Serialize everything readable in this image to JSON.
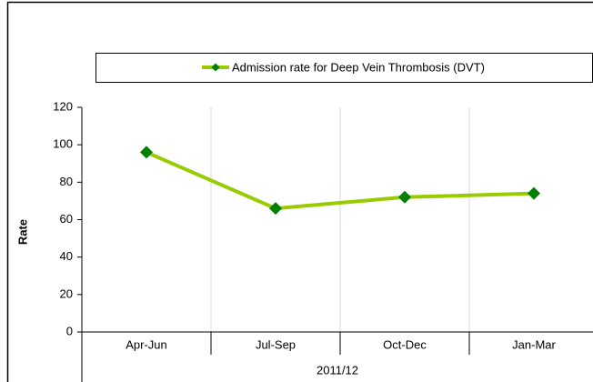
{
  "chart_data": {
    "type": "line",
    "categories": [
      "Apr-Jun",
      "Jul-Sep",
      "Oct-Dec",
      "Jan-Mar"
    ],
    "series": [
      {
        "name": "Admission rate for Deep Vein Thrombosis (DVT)",
        "color": "#99cc00",
        "marker_color": "#008000",
        "values": [
          96,
          66,
          72,
          74
        ]
      }
    ],
    "ylim": [
      0,
      120
    ],
    "yticks": [
      0,
      20,
      40,
      60,
      80,
      100,
      120
    ],
    "y_label": "Rate",
    "x_group_label": "2011/12",
    "grid": "x"
  }
}
